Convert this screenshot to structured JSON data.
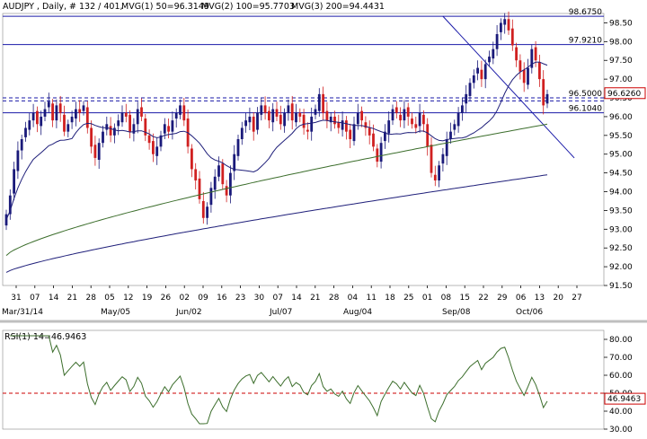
{
  "header": {
    "title": "AUDJPY , Daily, # 132 / 401, ",
    "mvg1": "MVG(1) 50=96.3149",
    "mvg2": "MVG(2) 100=95.7703",
    "mvg3": "MVG(3) 200=94.4431"
  },
  "chart_data": [
    {
      "type": "candlestick",
      "symbol": "AUDJPY",
      "timeframe": "Daily",
      "ylim": [
        91.5,
        98.75
      ],
      "y_ticks": [
        91.5,
        92.0,
        92.5,
        93.0,
        93.5,
        94.0,
        94.5,
        95.0,
        95.5,
        96.0,
        96.5,
        97.0,
        97.5,
        98.0,
        98.5
      ],
      "x_day_labels": [
        "31",
        "07",
        "14",
        "21",
        "28",
        "05",
        "12",
        "19",
        "26",
        "02",
        "09",
        "16",
        "23",
        "30",
        "07",
        "14",
        "21",
        "28",
        "04",
        "11",
        "18",
        "25",
        "01",
        "08",
        "15",
        "22",
        "29",
        "06",
        "13",
        "20",
        "27"
      ],
      "x_month_labels": [
        "Mar/31/14",
        "May/05",
        "Jun/02",
        "Jul/07",
        "Aug/04",
        "Sep/08",
        "Oct/06"
      ],
      "price_levels": [
        {
          "label": "98.6750",
          "value": 98.675,
          "color": "#1a1aa8",
          "style": "solid"
        },
        {
          "label": "97.9210",
          "value": 97.921,
          "color": "#1a1aa8",
          "style": "solid"
        },
        {
          "label": "96.5000",
          "value": 96.5,
          "color": "#1a1aa8",
          "style": "dashed"
        },
        {
          "label": "96.1040",
          "value": 96.104,
          "color": "#1a1aa8",
          "style": "solid"
        }
      ],
      "current_price": {
        "label": "96.6260",
        "value": 96.626,
        "color": "#cc0000"
      },
      "moving_averages": [
        {
          "name": "MVG(1) 50",
          "value": 96.3149,
          "color": "#1f1f7a"
        },
        {
          "name": "MVG(2) 100",
          "value": 95.7703,
          "color": "#3c6e2c"
        },
        {
          "name": "MVG(3) 200",
          "value": 94.4431,
          "color": "#1f1f7a"
        }
      ],
      "trendline": {
        "from": [
          113,
          98.675
        ],
        "to": [
          147,
          94.9
        ],
        "color": "#1a1aa8"
      },
      "up_color": "#1a1a7a",
      "down_color": "#d02020",
      "candle_closes": [
        93.4,
        93.9,
        94.6,
        95.1,
        95.4,
        95.7,
        95.9,
        96.1,
        95.8,
        96.0,
        96.2,
        96.4,
        95.9,
        96.3,
        96.1,
        95.6,
        95.8,
        96.0,
        96.2,
        96.1,
        96.3,
        95.7,
        95.2,
        94.9,
        95.3,
        95.6,
        95.8,
        95.5,
        95.7,
        95.9,
        96.1,
        96.0,
        95.6,
        95.8,
        96.2,
        96.0,
        95.5,
        95.3,
        95.0,
        95.2,
        95.5,
        95.8,
        95.6,
        95.9,
        96.1,
        96.3,
        95.9,
        95.2,
        94.6,
        94.3,
        93.8,
        93.3,
        93.6,
        94.1,
        94.4,
        94.7,
        94.2,
        93.9,
        94.5,
        95.0,
        95.4,
        95.7,
        95.9,
        96.0,
        95.6,
        96.1,
        96.3,
        96.1,
        95.9,
        96.2,
        96.0,
        95.8,
        96.1,
        96.3,
        95.9,
        96.1,
        96.0,
        95.7,
        95.6,
        96.0,
        96.2,
        96.6,
        96.1,
        95.9,
        96.0,
        95.8,
        95.7,
        95.9,
        95.6,
        95.4,
        95.8,
        96.1,
        95.9,
        95.7,
        95.5,
        95.2,
        94.8,
        95.3,
        95.6,
        95.9,
        96.2,
        96.1,
        95.9,
        96.2,
        96.0,
        95.8,
        95.7,
        96.1,
        95.8,
        95.2,
        94.5,
        94.3,
        94.7,
        95.0,
        95.4,
        95.6,
        95.8,
        96.1,
        96.3,
        96.6,
        96.9,
        97.1,
        97.3,
        97.0,
        97.4,
        97.6,
        97.8,
        98.2,
        98.5,
        98.6,
        98.3,
        97.9,
        97.5,
        97.2,
        96.9,
        97.3,
        97.8,
        97.5,
        97.0,
        96.3,
        96.6
      ]
    },
    {
      "type": "line",
      "name": "RSI(1) 14",
      "title_label": "RSI(1) 14=46.9463",
      "ylim": [
        30,
        85
      ],
      "y_ticks": [
        30.0,
        40.0,
        50.0,
        60.0,
        70.0,
        80.0
      ],
      "threshold": 50,
      "current": {
        "label": "46.9463",
        "value": 46.9463,
        "color": "#cc0000"
      },
      "color": "#3c6e2c"
    }
  ],
  "colors": {
    "axis": "#000000",
    "grid": "#a8a8a8",
    "separator": "#bfbfbf"
  }
}
